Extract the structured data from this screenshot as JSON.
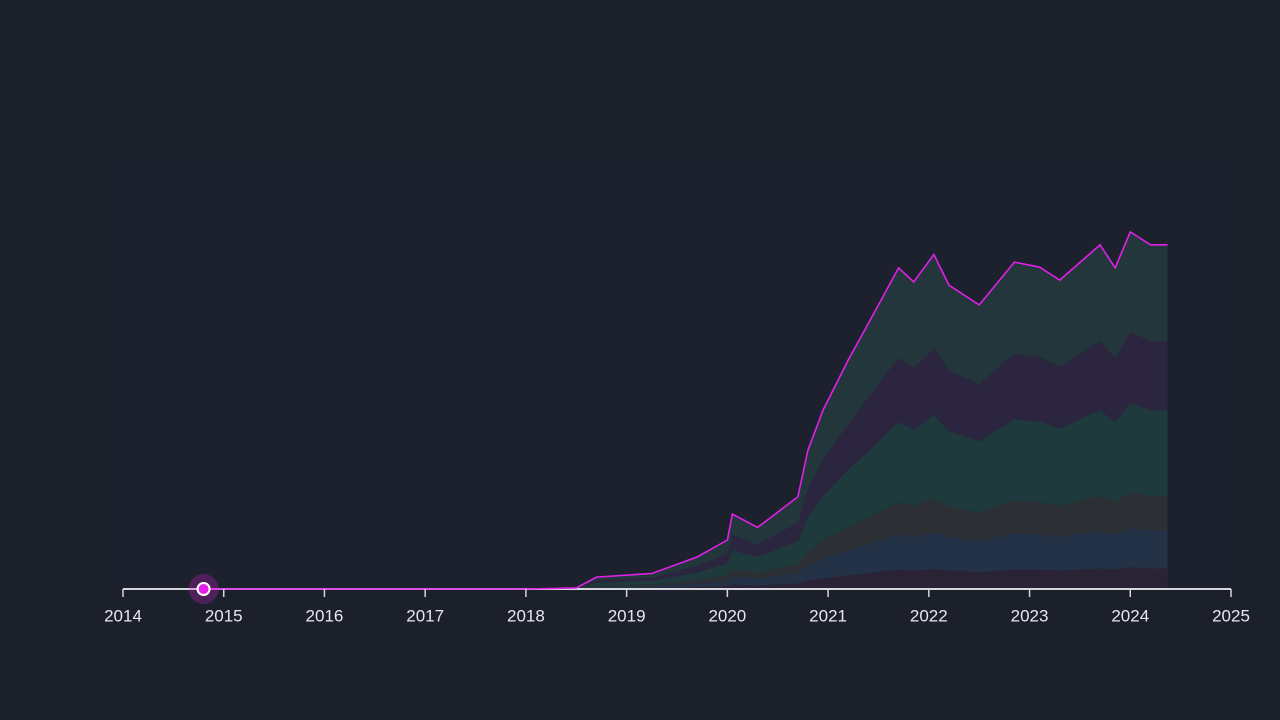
{
  "chart_data": {
    "type": "stacked-area",
    "x": [
      2014.8,
      2018.0,
      2018.5,
      2018.7,
      2019.25,
      2019.7,
      2020.0,
      2020.05,
      2020.3,
      2020.7,
      2020.8,
      2020.95,
      2021.2,
      2021.5,
      2021.7,
      2021.85,
      2022.05,
      2022.2,
      2022.5,
      2022.85,
      2023.1,
      2023.3,
      2023.7,
      2023.85,
      2024.0,
      2024.2,
      2024.37
    ],
    "series": [
      {
        "color": "#2a2336",
        "values": [
          0,
          0,
          0,
          0.2,
          0.3,
          0.5,
          0.8,
          1.2,
          1.0,
          1.5,
          2.3,
          3.0,
          3.8,
          4.7,
          5.4,
          5.1,
          5.6,
          5.1,
          4.7,
          5.4,
          5.4,
          5.1,
          5.7,
          5.4,
          6.0,
          5.7,
          5.7
        ]
      },
      {
        "color": "#233247",
        "values": [
          0,
          0,
          0,
          0.4,
          0.5,
          1.0,
          1.5,
          2.3,
          1.9,
          2.8,
          4.2,
          5.5,
          7.0,
          8.7,
          9.8,
          9.4,
          10.2,
          9.3,
          8.7,
          10.0,
          9.8,
          9.4,
          10.5,
          9.8,
          10.9,
          10.5,
          10.5
        ]
      },
      {
        "color": "#2c3035",
        "values": [
          0,
          0,
          0,
          0.3,
          0.4,
          0.9,
          1.4,
          2.1,
          1.7,
          2.6,
          3.9,
          5.0,
          6.4,
          7.9,
          8.9,
          8.5,
          9.3,
          8.4,
          7.9,
          9.1,
          8.9,
          8.6,
          9.6,
          8.9,
          9.9,
          9.6,
          9.6
        ]
      },
      {
        "color": "#1f3a3c",
        "values": [
          0,
          0,
          0.1,
          0.8,
          1.1,
          2.2,
          3.4,
          5.2,
          4.3,
          6.4,
          9.7,
          12.4,
          15.9,
          19.7,
          22.3,
          21.3,
          23.2,
          21.1,
          19.7,
          22.7,
          22.4,
          21.5,
          23.9,
          22.3,
          24.8,
          23.9,
          23.9
        ]
      },
      {
        "color": "#2c2540",
        "values": [
          0,
          0,
          0.1,
          0.7,
          0.8,
          1.8,
          2.7,
          4.2,
          3.4,
          5.1,
          7.7,
          9.9,
          12.7,
          15.8,
          17.8,
          17.1,
          18.6,
          16.9,
          15.8,
          18.2,
          17.9,
          17.2,
          19.1,
          17.8,
          19.8,
          19.1,
          19.1
        ]
      },
      {
        "color": "#23363c",
        "values": [
          0,
          0,
          0.1,
          0.9,
          1.2,
          2.5,
          3.8,
          5.8,
          4.8,
          7.2,
          10.8,
          13.9,
          17.8,
          22.1,
          25.0,
          23.9,
          26.0,
          23.6,
          22.1,
          25.4,
          25.0,
          24.0,
          26.8,
          25.0,
          27.8,
          26.8,
          26.8
        ]
      }
    ],
    "line_color": "#e020e8",
    "xlim": [
      2014,
      2025
    ],
    "xticks": [
      2014,
      2015,
      2016,
      2017,
      2018,
      2019,
      2020,
      2021,
      2022,
      2023,
      2024,
      2025
    ],
    "ylim": [
      0,
      100
    ]
  }
}
